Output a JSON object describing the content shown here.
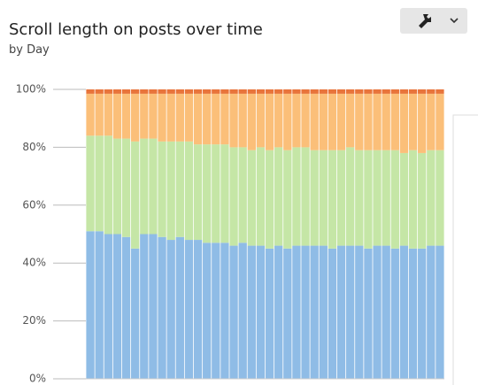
{
  "chart_data": {
    "type": "stacked_bar_100",
    "title": "Scroll length on posts over time",
    "subtitle": "by Day",
    "ylim": [
      0,
      100
    ],
    "yticks": [
      {
        "value": 0,
        "label": "0%"
      },
      {
        "value": 20,
        "label": "20%"
      },
      {
        "value": 40,
        "label": "40%"
      },
      {
        "value": 60,
        "label": "60%"
      },
      {
        "value": 80,
        "label": "80%"
      },
      {
        "value": 100,
        "label": "100%"
      }
    ],
    "grid": true,
    "series": [
      {
        "color": "#8fbce6",
        "values": [
          51,
          51,
          50,
          50,
          49,
          45,
          50,
          50,
          49,
          48,
          49,
          48,
          48,
          47,
          47,
          47,
          46,
          47,
          46,
          46,
          45,
          46,
          45,
          46,
          46,
          46,
          46,
          45,
          46,
          46,
          46,
          45,
          46,
          46,
          45,
          46,
          45,
          45,
          46,
          46
        ]
      },
      {
        "color": "#c5e6a6",
        "values": [
          33,
          33,
          34,
          33,
          34,
          37,
          33,
          33,
          33,
          34,
          33,
          34,
          33,
          34,
          34,
          34,
          34,
          33,
          33,
          34,
          34,
          34,
          34,
          34,
          34,
          33,
          33,
          34,
          33,
          34,
          33,
          34,
          33,
          33,
          34,
          32,
          34,
          33,
          33,
          33
        ]
      },
      {
        "color": "#fbbf79",
        "values": [
          14.5,
          14.5,
          14.5,
          15.5,
          15.5,
          16.5,
          15.5,
          15.5,
          16.5,
          16.5,
          16.5,
          16.5,
          17.5,
          17.5,
          17.5,
          17.5,
          18.5,
          18.5,
          19.5,
          18.5,
          19.5,
          18.5,
          19.5,
          18.5,
          18.5,
          19.5,
          19.5,
          19.5,
          19.5,
          18.5,
          19.5,
          19.5,
          19.5,
          19.5,
          19.5,
          20.5,
          19.5,
          20.5,
          19.5,
          19.5
        ]
      },
      {
        "color": "#e8743b",
        "values": [
          1.5,
          1.5,
          1.5,
          1.5,
          1.5,
          1.5,
          1.5,
          1.5,
          1.5,
          1.5,
          1.5,
          1.5,
          1.5,
          1.5,
          1.5,
          1.5,
          1.5,
          1.5,
          1.5,
          1.5,
          1.5,
          1.5,
          1.5,
          1.5,
          1.5,
          1.5,
          1.5,
          1.5,
          1.5,
          1.5,
          1.5,
          1.5,
          1.5,
          1.5,
          1.5,
          1.5,
          1.5,
          1.5,
          1.5,
          1.5
        ]
      }
    ]
  }
}
